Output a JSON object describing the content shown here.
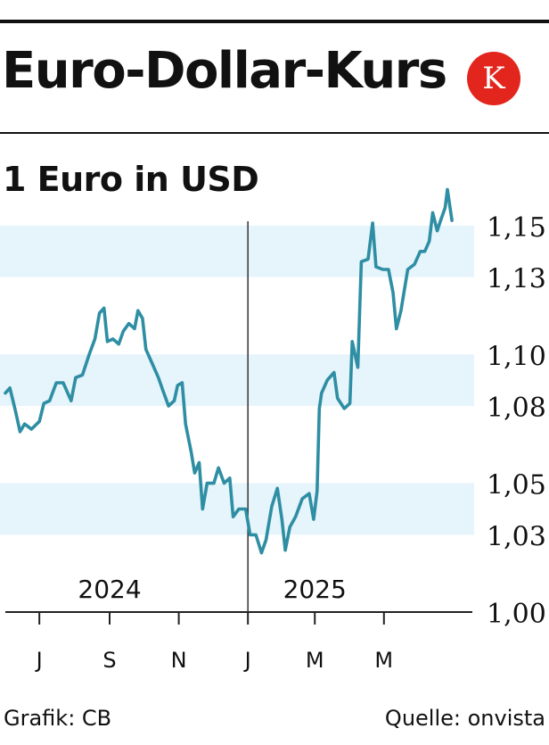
{
  "headline": "Euro-Dollar-Kurs",
  "logo": {
    "letter": "K",
    "color": "#e2261d"
  },
  "credit_left": "Grafik: CB",
  "credit_right": "Quelle: onvista",
  "chart_data": {
    "type": "line",
    "title": "1 Euro in USD",
    "ylim": [
      1.0,
      1.16
    ],
    "yticks": [
      {
        "value": 1.15,
        "label": "1,15"
      },
      {
        "value": 1.13,
        "label": "1,13"
      },
      {
        "value": 1.1,
        "label": "1,10"
      },
      {
        "value": 1.08,
        "label": "1,08"
      },
      {
        "value": 1.05,
        "label": "1,05"
      },
      {
        "value": 1.03,
        "label": "1,03"
      },
      {
        "value": 1.0,
        "label": "1,00"
      }
    ],
    "xlim": [
      "2024-06-01",
      "2025-07-18"
    ],
    "xticks": [
      {
        "date": "2024-07-01",
        "label": "J"
      },
      {
        "date": "2024-09-01",
        "label": "S"
      },
      {
        "date": "2024-11-01",
        "label": "N"
      },
      {
        "date": "2025-01-01",
        "label": "J"
      },
      {
        "date": "2025-03-01",
        "label": "M"
      },
      {
        "date": "2025-05-01",
        "label": "M"
      }
    ],
    "year_labels": [
      {
        "date": "2024-09-01",
        "label": "2024"
      },
      {
        "date": "2025-03-01",
        "label": "2025"
      }
    ],
    "year_divider": "2025-01-01",
    "line_color": "#2e8ea3",
    "band_color": "#e6f4fb",
    "series": [
      {
        "points": [
          [
            "2024-06-01",
            1.085
          ],
          [
            "2024-06-05",
            1.087
          ],
          [
            "2024-06-10",
            1.078
          ],
          [
            "2024-06-14",
            1.07
          ],
          [
            "2024-06-18",
            1.073
          ],
          [
            "2024-06-24",
            1.071
          ],
          [
            "2024-07-01",
            1.074
          ],
          [
            "2024-07-05",
            1.081
          ],
          [
            "2024-07-10",
            1.082
          ],
          [
            "2024-07-16",
            1.089
          ],
          [
            "2024-07-22",
            1.089
          ],
          [
            "2024-07-29",
            1.082
          ],
          [
            "2024-08-02",
            1.091
          ],
          [
            "2024-08-08",
            1.092
          ],
          [
            "2024-08-14",
            1.1
          ],
          [
            "2024-08-19",
            1.106
          ],
          [
            "2024-08-23",
            1.116
          ],
          [
            "2024-08-27",
            1.118
          ],
          [
            "2024-08-30",
            1.105
          ],
          [
            "2024-09-04",
            1.106
          ],
          [
            "2024-09-09",
            1.104
          ],
          [
            "2024-09-13",
            1.109
          ],
          [
            "2024-09-18",
            1.112
          ],
          [
            "2024-09-23",
            1.11
          ],
          [
            "2024-09-26",
            1.117
          ],
          [
            "2024-09-30",
            1.114
          ],
          [
            "2024-10-03",
            1.102
          ],
          [
            "2024-10-08",
            1.097
          ],
          [
            "2024-10-14",
            1.091
          ],
          [
            "2024-10-18",
            1.086
          ],
          [
            "2024-10-23",
            1.08
          ],
          [
            "2024-10-28",
            1.082
          ],
          [
            "2024-10-31",
            1.088
          ],
          [
            "2024-11-04",
            1.089
          ],
          [
            "2024-11-07",
            1.073
          ],
          [
            "2024-11-12",
            1.062
          ],
          [
            "2024-11-15",
            1.054
          ],
          [
            "2024-11-19",
            1.058
          ],
          [
            "2024-11-22",
            1.04
          ],
          [
            "2024-11-26",
            1.05
          ],
          [
            "2024-12-02",
            1.05
          ],
          [
            "2024-12-06",
            1.056
          ],
          [
            "2024-12-11",
            1.05
          ],
          [
            "2024-12-16",
            1.052
          ],
          [
            "2024-12-19",
            1.037
          ],
          [
            "2024-12-24",
            1.04
          ],
          [
            "2024-12-30",
            1.04
          ],
          [
            "2025-01-03",
            1.03
          ],
          [
            "2025-01-08",
            1.03
          ],
          [
            "2025-01-13",
            1.023
          ],
          [
            "2025-01-17",
            1.028
          ],
          [
            "2025-01-22",
            1.041
          ],
          [
            "2025-01-27",
            1.048
          ],
          [
            "2025-01-31",
            1.036
          ],
          [
            "2025-02-03",
            1.024
          ],
          [
            "2025-02-07",
            1.033
          ],
          [
            "2025-02-12",
            1.037
          ],
          [
            "2025-02-18",
            1.044
          ],
          [
            "2025-02-24",
            1.046
          ],
          [
            "2025-02-28",
            1.036
          ],
          [
            "2025-03-03",
            1.047
          ],
          [
            "2025-03-05",
            1.079
          ],
          [
            "2025-03-07",
            1.085
          ],
          [
            "2025-03-12",
            1.09
          ],
          [
            "2025-03-18",
            1.093
          ],
          [
            "2025-03-21",
            1.083
          ],
          [
            "2025-03-27",
            1.079
          ],
          [
            "2025-04-01",
            1.081
          ],
          [
            "2025-04-03",
            1.105
          ],
          [
            "2025-04-08",
            1.095
          ],
          [
            "2025-04-11",
            1.136
          ],
          [
            "2025-04-17",
            1.137
          ],
          [
            "2025-04-21",
            1.151
          ],
          [
            "2025-04-24",
            1.134
          ],
          [
            "2025-04-30",
            1.133
          ],
          [
            "2025-05-05",
            1.133
          ],
          [
            "2025-05-09",
            1.124
          ],
          [
            "2025-05-12",
            1.11
          ],
          [
            "2025-05-16",
            1.117
          ],
          [
            "2025-05-22",
            1.133
          ],
          [
            "2025-05-28",
            1.135
          ],
          [
            "2025-06-02",
            1.14
          ],
          [
            "2025-06-06",
            1.14
          ],
          [
            "2025-06-10",
            1.144
          ],
          [
            "2025-06-13",
            1.155
          ],
          [
            "2025-06-17",
            1.148
          ],
          [
            "2025-06-20",
            1.152
          ],
          [
            "2025-06-24",
            1.157
          ],
          [
            "2025-06-26",
            1.164
          ],
          [
            "2025-06-30",
            1.152
          ]
        ]
      }
    ]
  }
}
